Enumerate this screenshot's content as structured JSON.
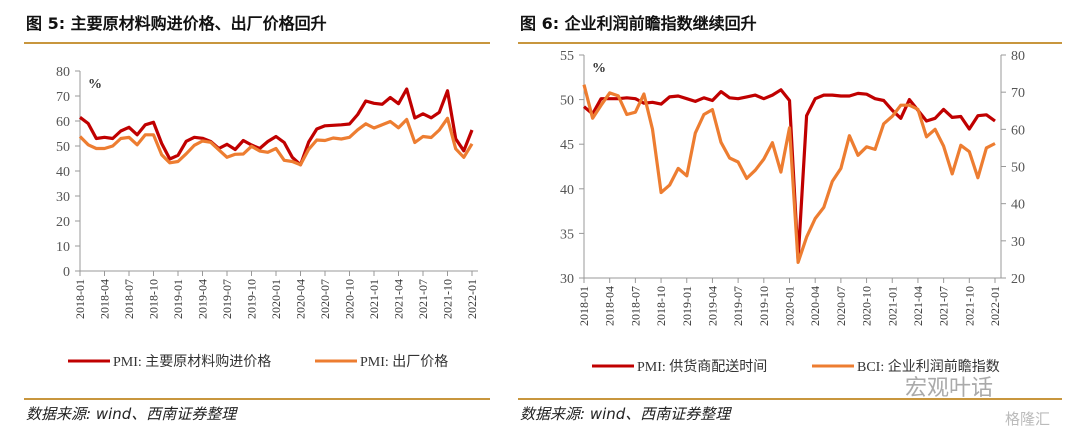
{
  "charts_text": [
    {
      "title": "图 5:  主要原材料购进价格、出厂价格回升",
      "source": "数据来源:  wind、西南证券整理"
    },
    {
      "title": "图 6:  企业利润前瞻指数继续回升",
      "source": "数据来源:  wind、西南证券整理"
    }
  ],
  "watermark": {
    "text": "宏观叶话",
    "logo": "格隆汇"
  },
  "colors": {
    "red": "#c00000",
    "orange": "#ed7d31",
    "rule": "#c8963e"
  },
  "chart_data": [
    {
      "type": "line",
      "unit_label": "%",
      "ylim": [
        0,
        80
      ],
      "yticks": [
        0,
        10,
        20,
        30,
        40,
        50,
        60,
        70,
        80
      ],
      "xticks": [
        "2018-01",
        "2018-04",
        "2018-07",
        "2018-10",
        "2019-01",
        "2019-04",
        "2019-07",
        "2019-10",
        "2020-01",
        "2020-04",
        "2020-07",
        "2020-10",
        "2021-01",
        "2021-04",
        "2021-07",
        "2021-10",
        "2022-01"
      ],
      "x_range": [
        "2018-01",
        "2022-01"
      ],
      "grid": false,
      "legend": "bottom",
      "series": [
        {
          "name": "PMI: 主要原材料购进价格",
          "color": "#c00000",
          "values": [
            61.5,
            59,
            53,
            53.5,
            53,
            56,
            57.5,
            54.5,
            58.5,
            59.5,
            51,
            44.8,
            46.3,
            51.9,
            53.5,
            53.1,
            51.8,
            49,
            50.7,
            48.6,
            52.2,
            50.4,
            49,
            51.8,
            53.8,
            51.4,
            45.5,
            42.5,
            51.6,
            56.8,
            58.1,
            58.3,
            58.5,
            58.8,
            62.6,
            68,
            67.1,
            66.7,
            69.4,
            66.9,
            72.8,
            61.2,
            62.9,
            61.3,
            63.5,
            72.1,
            52.9,
            48.1,
            56.4
          ]
        },
        {
          "name": "PMI: 出厂价格",
          "color": "#ed7d31",
          "values": [
            53.8,
            50.5,
            49,
            49,
            50,
            53,
            53.5,
            50.5,
            54.5,
            54.5,
            46.5,
            43.3,
            43.8,
            46.9,
            50.3,
            52,
            51.5,
            48.5,
            45.5,
            46.7,
            46.8,
            49.9,
            48,
            47.5,
            49,
            44.3,
            43.8,
            42.5,
            48.7,
            52.4,
            52.2,
            53.2,
            52.8,
            53.5,
            56.5,
            58.9,
            57.2,
            58.5,
            59.8,
            57.3,
            60.6,
            51.4,
            53.8,
            53.4,
            56.4,
            61.1,
            48.9,
            45.5,
            50.9
          ]
        }
      ]
    },
    {
      "type": "line",
      "unit_label": "%",
      "ylim": [
        30,
        55
      ],
      "yticks": [
        30,
        35,
        40,
        45,
        50,
        55
      ],
      "y2lim": [
        20,
        80
      ],
      "y2ticks": [
        20,
        30,
        40,
        50,
        60,
        70,
        80
      ],
      "xticks": [
        "2018-01",
        "2018-04",
        "2018-07",
        "2018-10",
        "2019-01",
        "2019-04",
        "2019-07",
        "2019-10",
        "2020-01",
        "2020-04",
        "2020-07",
        "2020-10",
        "2021-01",
        "2021-04",
        "2021-07",
        "2021-10",
        "2022-01"
      ],
      "x_range": [
        "2018-01",
        "2022-01"
      ],
      "grid": false,
      "legend": "bottom",
      "series": [
        {
          "name": "PMI: 供货商配送时间",
          "axis": "left",
          "color": "#c00000",
          "values": [
            49.2,
            48.4,
            50.1,
            50.1,
            50.1,
            50.2,
            50.1,
            49.6,
            49.7,
            49.5,
            50.3,
            50.4,
            50.1,
            49.8,
            50.2,
            49.9,
            50.9,
            50.2,
            50.1,
            50.3,
            50.5,
            50.1,
            50.5,
            51.1,
            49.9,
            32.1,
            48.2,
            50.1,
            50.5,
            50.5,
            50.4,
            50.4,
            50.7,
            50.6,
            50.1,
            49.9,
            48.8,
            47.9,
            50,
            48.8,
            47.6,
            47.9,
            48.9,
            48,
            48.1,
            46.7,
            48.2,
            48.3,
            47.6
          ]
        },
        {
          "name": "BCI: 企业利润前瞻指数",
          "axis": "right",
          "color": "#ed7d31",
          "values": [
            72,
            63,
            66.5,
            69.8,
            69,
            64,
            64.6,
            69.5,
            60,
            43,
            45,
            49.5,
            47.5,
            59,
            64,
            65.3,
            56.5,
            52.3,
            51.2,
            46.8,
            49,
            52,
            56.4,
            48.5,
            60.4,
            24.2,
            31,
            36,
            39,
            46,
            49.5,
            58.3,
            53,
            55.3,
            54.6,
            61.5,
            63.5,
            66.5,
            66.5,
            65.4,
            58,
            60,
            55.5,
            48,
            55.7,
            54,
            47,
            55,
            56.2
          ]
        }
      ]
    }
  ]
}
